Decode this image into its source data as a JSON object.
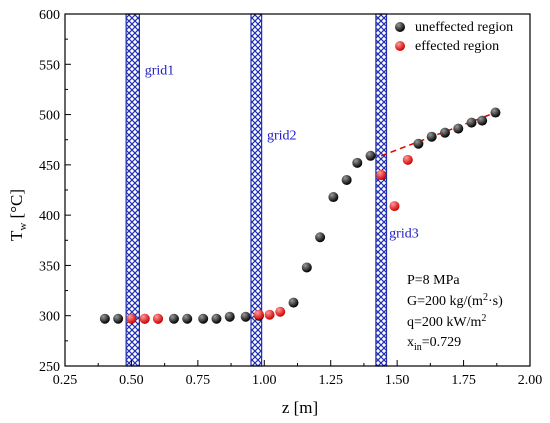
{
  "chart_data": {
    "type": "scatter",
    "xlabel": "z [m]",
    "ylabel_main": "T",
    "ylabel_sub": "w",
    "ylabel_unit": " [°C]",
    "xlim": [
      0.25,
      2.0
    ],
    "ylim": [
      250,
      600
    ],
    "xticks": [
      0.25,
      0.5,
      0.75,
      1.0,
      1.25,
      1.5,
      1.75,
      2.0
    ],
    "xtick_labels": [
      "0.25",
      "0.50",
      "0.75",
      "1.00",
      "1.25",
      "1.50",
      "1.75",
      "2.00"
    ],
    "yticks": [
      250,
      300,
      350,
      400,
      450,
      500,
      550,
      600
    ],
    "ytick_labels": [
      "250",
      "300",
      "350",
      "400",
      "450",
      "500",
      "550",
      "600"
    ],
    "grid": false,
    "legend_position": "top-right",
    "series": [
      {
        "name": "uneffected region",
        "color": "#000000",
        "x": [
          0.4,
          0.45,
          0.5,
          0.55,
          0.6,
          0.66,
          0.71,
          0.77,
          0.82,
          0.87,
          0.93,
          0.98,
          1.11,
          1.16,
          1.21,
          1.26,
          1.31,
          1.35,
          1.4,
          1.44,
          1.58,
          1.63,
          1.68,
          1.73,
          1.78,
          1.82,
          1.87
        ],
        "y": [
          297,
          297,
          297,
          297,
          297,
          297,
          297,
          297,
          297,
          299,
          299,
          300,
          313,
          348,
          378,
          418,
          435,
          452,
          459,
          440,
          471,
          478,
          482,
          486,
          492,
          494,
          502
        ]
      },
      {
        "name": "effected region",
        "color": "#e00000",
        "x": [
          0.5,
          0.55,
          0.6,
          0.98,
          1.02,
          1.06,
          1.44,
          1.49,
          1.54
        ],
        "y": [
          297,
          297,
          297,
          301,
          301,
          304,
          440,
          409,
          455
        ]
      }
    ],
    "trend_line": {
      "x": [
        1.44,
        1.87
      ],
      "y": [
        459,
        502
      ],
      "color": "#e00000"
    },
    "grids": [
      {
        "label": "grid1",
        "x_start": 0.48,
        "x_end": 0.53,
        "label_x": 0.55,
        "label_y": 540
      },
      {
        "label": "grid2",
        "x_start": 0.95,
        "x_end": 0.99,
        "label_x": 1.01,
        "label_y": 475
      },
      {
        "label": "grid3",
        "x_start": 1.42,
        "x_end": 1.46,
        "label_x": 1.47,
        "label_y": 378
      }
    ],
    "conditions": {
      "line1": "P=8 MPa",
      "line2_a": "G=200 kg/(m",
      "line2_sup": "2",
      "line2_b": "·s)",
      "line3_a": "q=200 kW/m",
      "line3_sup": "2",
      "line4_a": "x",
      "line4_sub": "in",
      "line4_b": "=0.729"
    }
  }
}
